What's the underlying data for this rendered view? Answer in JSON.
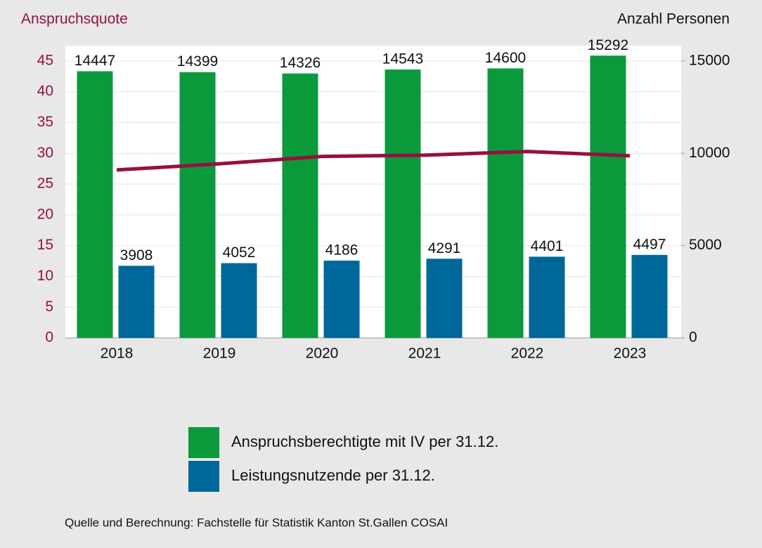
{
  "chart_data": {
    "type": "bar",
    "y_label": "Anspruchsquote",
    "y2_label": "Anzahl Personen",
    "categories": [
      "2018",
      "2019",
      "2020",
      "2021",
      "2022",
      "2023"
    ],
    "series": [
      {
        "name": "Anspruchsberechtigte mit IV per 31.12.",
        "type": "bar",
        "axis": "y2",
        "color": "#0a9a3c",
        "values": [
          14447,
          14399,
          14326,
          14543,
          14600,
          15292
        ]
      },
      {
        "name": "Leistungsnutzende per 31.12.",
        "type": "bar",
        "axis": "y2",
        "color": "#00679b",
        "values": [
          3908,
          4052,
          4186,
          4291,
          4401,
          4497
        ]
      },
      {
        "type": "line",
        "axis": "y",
        "color": "#96103f",
        "values": [
          27.3,
          28.3,
          29.5,
          29.7,
          30.3,
          29.6
        ]
      }
    ],
    "ylim": [
      0,
      47.5
    ],
    "yticks": [
      0,
      5,
      10,
      15,
      20,
      25,
      30,
      35,
      40,
      45
    ],
    "y2lim": [
      0,
      15833
    ],
    "y2ticks": [
      0,
      5000,
      10000,
      15000
    ],
    "grid": true,
    "legend": "bottom",
    "source": "Quelle und Berechnung: Fachstelle für Statistik Kanton St.Gallen COSAI"
  }
}
